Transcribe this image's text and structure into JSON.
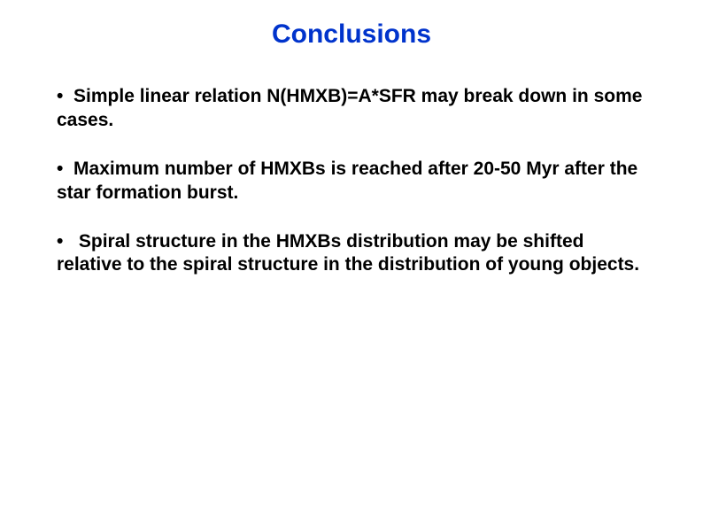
{
  "title": "Conclusions",
  "title_color": "#0033cc",
  "title_fontsize": 30,
  "body_color": "#000000",
  "body_fontsize": 21,
  "background_color": "#ffffff",
  "bullets": [
    "Simple linear relation N(HMXB)=A*SFR may break down in some cases.",
    "Maximum number of HMXBs is reached after 20-50 Myr after the star formation burst.",
    "Spiral structure in the HMXBs distribution may be shifted relative to the spiral structure in the distribution of young objects."
  ],
  "bullet_mark": "•"
}
